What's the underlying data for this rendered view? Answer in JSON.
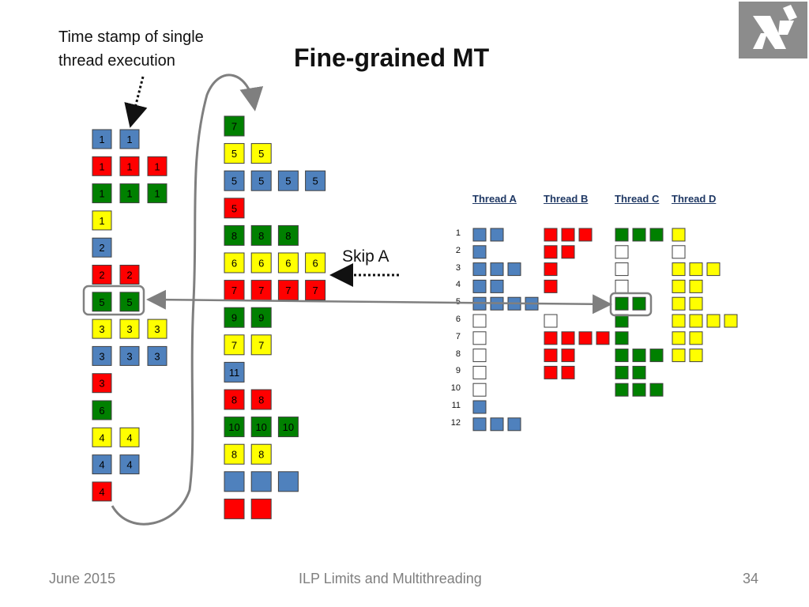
{
  "slide": {
    "title": "Fine-grained MT",
    "caption": "Time stamp of single\nthread execution",
    "skip_label": "Skip A",
    "footer": {
      "date": "June 2015",
      "topic": "ILP Limits and Multithreading",
      "page": "34"
    },
    "logo_icon": "university-logo-icon"
  },
  "colors": {
    "blue": "#4f81bd",
    "red": "#ff0000",
    "green": "#008000",
    "yellow": "#ffff00",
    "empty": "#ffffff",
    "border": "#404040",
    "arrow": "#7f7f7f"
  },
  "left_rows": [
    {
      "color": "blue",
      "labels": [
        "1",
        "1"
      ]
    },
    {
      "color": "red",
      "labels": [
        "1",
        "1",
        "1"
      ]
    },
    {
      "color": "green",
      "labels": [
        "1",
        "1",
        "1"
      ]
    },
    {
      "color": "yellow",
      "labels": [
        "1"
      ]
    },
    {
      "color": "blue",
      "labels": [
        "2"
      ]
    },
    {
      "color": "red",
      "labels": [
        "2",
        "2"
      ]
    },
    {
      "color": "green",
      "labels": [
        "5",
        "5"
      ]
    },
    {
      "color": "yellow",
      "labels": [
        "3",
        "3",
        "3"
      ]
    },
    {
      "color": "blue",
      "labels": [
        "3",
        "3",
        "3"
      ]
    },
    {
      "color": "red",
      "labels": [
        "3"
      ]
    },
    {
      "color": "green",
      "labels": [
        "6"
      ]
    },
    {
      "color": "yellow",
      "labels": [
        "4",
        "4"
      ]
    },
    {
      "color": "blue",
      "labels": [
        "4",
        "4"
      ]
    },
    {
      "color": "red",
      "labels": [
        "4"
      ]
    }
  ],
  "middle_rows": [
    {
      "color": "green",
      "labels": [
        "7"
      ]
    },
    {
      "color": "yellow",
      "labels": [
        "5",
        "5"
      ]
    },
    {
      "color": "blue",
      "labels": [
        "5",
        "5",
        "5",
        "5"
      ]
    },
    {
      "color": "red",
      "labels": [
        "5"
      ]
    },
    {
      "color": "green",
      "labels": [
        "8",
        "8",
        "8"
      ]
    },
    {
      "color": "yellow",
      "labels": [
        "6",
        "6",
        "6",
        "6"
      ]
    },
    {
      "color": "red",
      "labels": [
        "7",
        "7",
        "7",
        "7"
      ]
    },
    {
      "color": "green",
      "labels": [
        "9",
        "9"
      ]
    },
    {
      "color": "yellow",
      "labels": [
        "7",
        "7"
      ]
    },
    {
      "color": "blue",
      "labels": [
        "11"
      ]
    },
    {
      "color": "red",
      "labels": [
        "8",
        "8"
      ]
    },
    {
      "color": "green",
      "labels": [
        "10",
        "10",
        "10"
      ]
    },
    {
      "color": "yellow",
      "labels": [
        "8",
        "8"
      ]
    },
    {
      "color": "blue",
      "labels": [
        "",
        "",
        ""
      ]
    },
    {
      "color": "red",
      "labels": [
        "",
        ""
      ]
    }
  ],
  "threads": [
    {
      "name": "Thread A",
      "color": "blue",
      "rows": [
        2,
        1,
        3,
        2,
        4,
        "e",
        "e",
        "e",
        "e",
        "e",
        1,
        3
      ]
    },
    {
      "name": "Thread B",
      "color": "red",
      "rows": [
        3,
        2,
        1,
        1,
        0,
        "e",
        4,
        2,
        2,
        0,
        0,
        0
      ]
    },
    {
      "name": "Thread C",
      "color": "green",
      "rows": [
        3,
        "e",
        "e",
        "e",
        2,
        1,
        1,
        3,
        2,
        3,
        0,
        0
      ]
    },
    {
      "name": "Thread D",
      "color": "yellow",
      "rows": [
        1,
        "e",
        3,
        2,
        2,
        4,
        2,
        2,
        0,
        0,
        0,
        0
      ]
    }
  ],
  "row_numbers": [
    "1",
    "2",
    "3",
    "4",
    "5",
    "6",
    "7",
    "8",
    "9",
    "10",
    "11",
    "12"
  ]
}
